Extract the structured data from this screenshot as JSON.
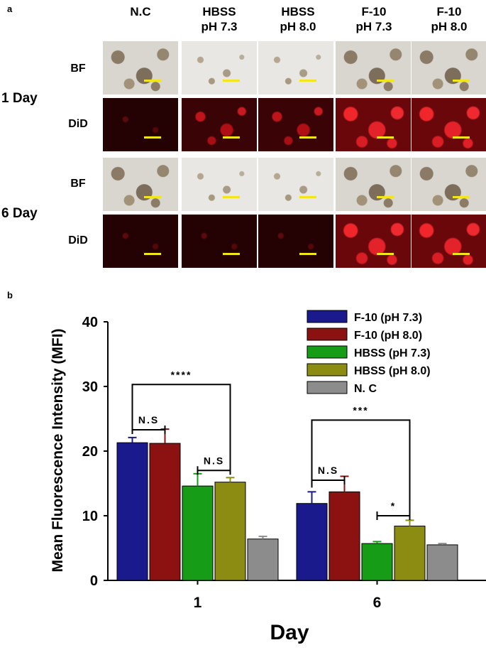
{
  "panel_a": {
    "letter": "a",
    "columns": [
      "N.C",
      "HBSS\npH 7.3",
      "HBSS\npH 8.0",
      "F-10\npH 7.3",
      "F-10\npH 8.0"
    ],
    "rows": [
      {
        "day": "1 Day",
        "channels": [
          "BF",
          "DiD"
        ]
      },
      {
        "day": "6 Day",
        "channels": [
          "BF",
          "DiD"
        ]
      }
    ]
  },
  "chart_data": {
    "panel_letter": "b",
    "type": "bar",
    "categories": [
      "1",
      "6"
    ],
    "series": [
      {
        "name": "F-10 (pH 7.3)",
        "color": "#1a1a8c",
        "values": [
          21.3,
          11.9
        ],
        "errors": [
          0.8,
          1.8
        ]
      },
      {
        "name": "F-10 (pH 8.0)",
        "color": "#8c1212",
        "values": [
          21.2,
          13.7
        ],
        "errors": [
          2.2,
          2.4
        ]
      },
      {
        "name": "HBSS (pH 7.3)",
        "color": "#169c16",
        "values": [
          14.6,
          5.7
        ],
        "errors": [
          1.9,
          0.3
        ]
      },
      {
        "name": "HBSS (pH 8.0)",
        "color": "#8c8c12",
        "values": [
          15.2,
          8.4
        ],
        "errors": [
          0.7,
          0.9
        ]
      },
      {
        "name": "N. C",
        "color": "#8c8c8c",
        "values": [
          6.4,
          5.5
        ],
        "errors": [
          0.4,
          0.2
        ]
      }
    ],
    "xlabel": "Day",
    "ylabel": "Mean Fluorescence Intensity (MFI)",
    "ylim": [
      0,
      40
    ],
    "yticks": [
      0,
      10,
      20,
      30,
      40
    ],
    "legend_position": "top-right",
    "annotations": [
      {
        "text": "N.S",
        "group": 0,
        "from_series": 0,
        "to_series": 1,
        "level": 23.3
      },
      {
        "text": "N.S",
        "group": 0,
        "from_series": 2,
        "to_series": 3,
        "level": 17.0
      },
      {
        "text": "****",
        "group": 0,
        "from_series": 0,
        "to_series": 3,
        "level": 30.3,
        "type": "bracket"
      },
      {
        "text": "N.S",
        "group": 1,
        "from_series": 0,
        "to_series": 1,
        "level": 15.5
      },
      {
        "text": "*",
        "group": 1,
        "from_series": 2,
        "to_series": 3,
        "level": 10.0
      },
      {
        "text": "***",
        "group": 1,
        "from_series": 0,
        "to_series": 3,
        "level": 24.8,
        "type": "bracket"
      }
    ]
  }
}
